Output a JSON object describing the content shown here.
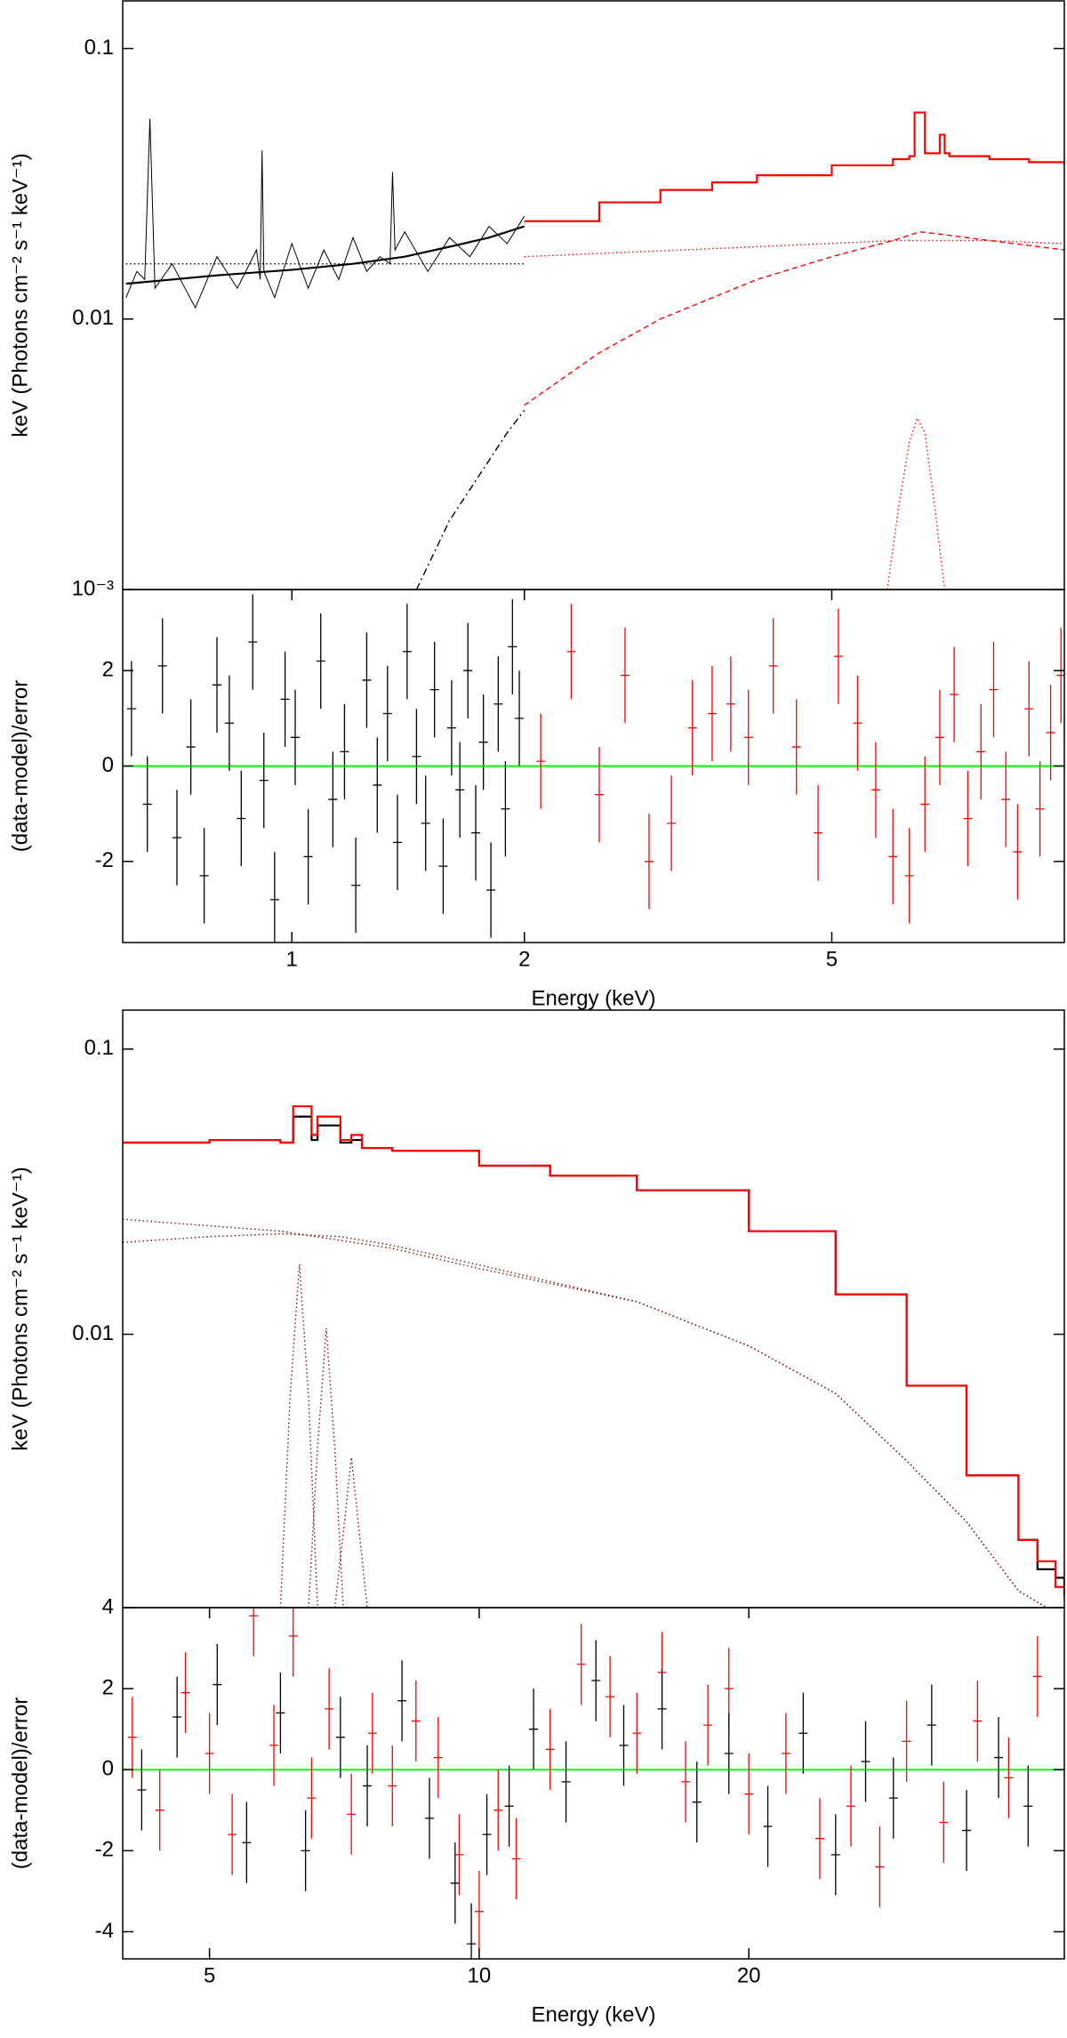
{
  "chart_data": [
    {
      "type": "line",
      "xscale": "log",
      "yscale": "log",
      "xlim": [
        0.604,
        10
      ],
      "ylim": [
        0.001,
        0.15
      ],
      "ylabel": "keV (Photons cm⁻² s⁻¹ keV⁻¹)",
      "yticks": [
        0.1,
        0.01,
        {
          "value": 0.001,
          "label": "10⁻³"
        }
      ],
      "series": [
        {
          "color": "#000000",
          "style": "solid",
          "x": [
            0.61,
            0.63,
            0.645,
            0.655,
            0.665,
            0.7,
            0.75,
            0.8,
            0.85,
            0.9,
            0.91,
            0.915,
            0.92,
            0.95,
            1.0,
            1.05,
            1.1,
            1.15,
            1.2,
            1.25,
            1.3,
            1.34,
            1.35,
            1.36,
            1.4,
            1.5,
            1.6,
            1.7,
            1.8,
            1.9,
            2.0
          ],
          "values": [
            0.012,
            0.015,
            0.014,
            0.055,
            0.013,
            0.016,
            0.011,
            0.017,
            0.013,
            0.018,
            0.014,
            0.042,
            0.015,
            0.012,
            0.019,
            0.013,
            0.018,
            0.014,
            0.02,
            0.015,
            0.017,
            0.016,
            0.035,
            0.018,
            0.021,
            0.015,
            0.02,
            0.017,
            0.022,
            0.019,
            0.024
          ]
        },
        {
          "color": "#000000",
          "style": "thick",
          "x": [
            0.61,
            0.8,
            1.0,
            1.2,
            1.4,
            1.6,
            1.8,
            2.0
          ],
          "values": [
            0.0135,
            0.0145,
            0.0152,
            0.016,
            0.017,
            0.0185,
            0.02,
            0.022
          ]
        },
        {
          "color": "#000000",
          "style": "dotted",
          "x": [
            0.61,
            2.0
          ],
          "values": [
            0.016,
            0.016
          ]
        },
        {
          "color": "#000000",
          "style": "dashdot",
          "x": [
            1.45,
            1.6,
            1.8,
            1.9,
            2.0
          ],
          "values": [
            0.001,
            0.0018,
            0.003,
            0.0038,
            0.0046
          ]
        },
        {
          "color": "#ff0000",
          "style": "steps",
          "x": [
            2,
            2.5,
            3,
            3.5,
            4,
            5,
            6,
            6.3,
            6.4,
            6.5,
            6.6,
            6.7,
            6.9,
            7.0,
            7.1,
            8,
            9,
            10
          ],
          "values": [
            0.023,
            0.027,
            0.03,
            0.032,
            0.034,
            0.037,
            0.039,
            0.04,
            0.058,
            0.058,
            0.041,
            0.041,
            0.048,
            0.041,
            0.04,
            0.039,
            0.038,
            0.037
          ]
        },
        {
          "color": "#ff0000",
          "style": "dotted",
          "x": [
            2,
            4,
            6,
            8,
            10
          ],
          "values": [
            0.017,
            0.0185,
            0.0195,
            0.0195,
            0.019
          ]
        },
        {
          "color": "#ff0000",
          "style": "dashed",
          "x": [
            2,
            2.5,
            3,
            4,
            5,
            6,
            6.5,
            7,
            8,
            10
          ],
          "values": [
            0.0048,
            0.0075,
            0.01,
            0.014,
            0.017,
            0.0195,
            0.021,
            0.0205,
            0.0195,
            0.018
          ]
        },
        {
          "color": "#ff0000",
          "style": "dotted",
          "x": [
            5.9,
            6.1,
            6.3,
            6.45,
            6.6,
            6.8,
            7.0
          ],
          "values": [
            0.001,
            0.002,
            0.0035,
            0.0043,
            0.0038,
            0.002,
            0.001
          ]
        }
      ]
    },
    {
      "type": "errorbar",
      "xscale": "log",
      "xlim": [
        0.604,
        10
      ],
      "ylim": [
        -3.7,
        3.7
      ],
      "ylabel": "(data-model)/error",
      "xlabel": "Energy (keV)",
      "yticks": [
        2,
        0,
        -2
      ],
      "xticks": [
        1,
        2,
        5
      ],
      "reference_line": {
        "value": 0,
        "color": "#00ff00"
      },
      "series": [
        {
          "color": "#000000",
          "x": [
            0.62,
            0.65,
            0.68,
            0.71,
            0.74,
            0.77,
            0.8,
            0.83,
            0.86,
            0.89,
            0.92,
            0.95,
            0.98,
            1.01,
            1.05,
            1.09,
            1.13,
            1.17,
            1.21,
            1.25,
            1.29,
            1.33,
            1.37,
            1.41,
            1.45,
            1.49,
            1.53,
            1.57,
            1.61,
            1.65,
            1.69,
            1.73,
            1.77,
            1.81,
            1.85,
            1.89,
            1.93,
            1.97
          ],
          "values": [
            1.2,
            -0.8,
            2.1,
            -1.5,
            0.4,
            -2.3,
            1.7,
            0.9,
            -1.1,
            2.6,
            -0.3,
            -2.8,
            1.4,
            0.6,
            -1.9,
            2.2,
            -0.7,
            0.3,
            -2.5,
            1.8,
            -0.4,
            1.1,
            -1.6,
            2.4,
            0.2,
            -1.2,
            1.6,
            -2.1,
            0.8,
            -0.5,
            2.0,
            -1.4,
            0.5,
            -2.6,
            1.3,
            -0.9,
            2.5,
            1.0
          ],
          "errors": [
            1,
            1,
            1,
            1,
            1,
            1,
            1,
            1,
            1,
            1,
            1,
            1,
            1,
            1,
            1,
            1,
            1,
            1,
            1,
            1,
            1,
            1,
            1,
            1,
            1,
            1,
            1,
            1,
            1,
            1,
            1,
            1,
            1,
            1,
            1,
            1,
            1,
            1
          ]
        },
        {
          "color": "#ff0000",
          "x": [
            2.1,
            2.3,
            2.5,
            2.7,
            2.9,
            3.1,
            3.3,
            3.5,
            3.7,
            3.9,
            4.2,
            4.5,
            4.8,
            5.1,
            5.4,
            5.7,
            6.0,
            6.3,
            6.6,
            6.9,
            7.2,
            7.5,
            7.8,
            8.1,
            8.4,
            8.7,
            9.0,
            9.3,
            9.6,
            9.9
          ],
          "values": [
            0.1,
            2.4,
            -0.6,
            1.9,
            -2.0,
            -1.2,
            0.8,
            1.1,
            1.3,
            0.6,
            2.1,
            0.4,
            -1.4,
            2.3,
            0.9,
            -0.5,
            -1.9,
            -2.3,
            -0.8,
            0.6,
            1.5,
            -1.1,
            0.3,
            1.6,
            -0.7,
            -1.8,
            1.2,
            -0.9,
            0.7,
            1.9
          ],
          "errors": [
            1,
            1,
            1,
            1,
            1,
            1,
            1,
            1,
            1,
            1,
            1,
            1,
            1,
            1,
            1,
            1,
            1,
            1,
            1,
            1,
            1,
            1,
            1,
            1,
            1,
            1,
            1,
            1,
            1,
            1
          ]
        }
      ]
    },
    {
      "type": "line",
      "xscale": "log",
      "yscale": "log",
      "xlim": [
        4,
        45
      ],
      "ylim": [
        0.0011,
        0.137
      ],
      "ylabel": "keV (Photons cm⁻² s⁻¹ keV⁻¹)",
      "yticks": [
        0.1,
        0.01
      ],
      "series": [
        {
          "color": "#000000",
          "style": "steps",
          "x": [
            4,
            5,
            6,
            6.2,
            6.3,
            6.5,
            6.6,
            6.8,
            7.0,
            7.2,
            7.4,
            8,
            10,
            12,
            15,
            20,
            25,
            30,
            35,
            40,
            42,
            44,
            45
          ],
          "values": [
            0.047,
            0.048,
            0.047,
            0.058,
            0.058,
            0.048,
            0.054,
            0.054,
            0.047,
            0.048,
            0.045,
            0.044,
            0.039,
            0.036,
            0.032,
            0.023,
            0.0138,
            0.0066,
            0.0032,
            0.0019,
            0.0015,
            0.0014,
            0.0013
          ]
        },
        {
          "color": "#ff0000",
          "style": "steps",
          "x": [
            4,
            5,
            6,
            6.2,
            6.3,
            6.5,
            6.6,
            6.8,
            7.0,
            7.2,
            7.4,
            8,
            10,
            12,
            15,
            20,
            25,
            30,
            35,
            40,
            42,
            44,
            45
          ],
          "values": [
            0.047,
            0.048,
            0.047,
            0.063,
            0.063,
            0.05,
            0.058,
            0.058,
            0.048,
            0.05,
            0.045,
            0.044,
            0.039,
            0.036,
            0.032,
            0.023,
            0.0138,
            0.0066,
            0.0032,
            0.0019,
            0.0016,
            0.0013,
            0.0012
          ]
        },
        {
          "color": "#7a1010",
          "style": "dotted",
          "x": [
            4,
            6,
            8,
            10,
            15,
            20,
            25,
            30,
            35,
            40,
            43
          ],
          "values": [
            0.0253,
            0.023,
            0.02,
            0.017,
            0.013,
            0.0091,
            0.0062,
            0.0036,
            0.0022,
            0.00126,
            0.0011
          ]
        },
        {
          "color": "#7a1010",
          "style": "dotted",
          "x": [
            4,
            5,
            6,
            7,
            8,
            10,
            15,
            20,
            25,
            30,
            35,
            40,
            43
          ],
          "values": [
            0.021,
            0.022,
            0.0225,
            0.022,
            0.0205,
            0.0175,
            0.013,
            0.0091,
            0.0062,
            0.0036,
            0.0022,
            0.00126,
            0.0011
          ]
        },
        {
          "color": "#7a1010",
          "style": "dotted",
          "x": [
            6.0,
            6.15,
            6.3,
            6.45,
            6.6
          ],
          "values": [
            0.0011,
            0.006,
            0.0176,
            0.006,
            0.0011
          ]
        },
        {
          "color": "#7a1010",
          "style": "dotted",
          "x": [
            6.45,
            6.6,
            6.75,
            6.9,
            7.05
          ],
          "values": [
            0.0011,
            0.004,
            0.0105,
            0.004,
            0.0011
          ]
        },
        {
          "color": "#7a1010",
          "style": "dotted",
          "x": [
            6.9,
            7.05,
            7.2,
            7.35,
            7.5
          ],
          "values": [
            0.0011,
            0.002,
            0.0037,
            0.002,
            0.0011
          ]
        }
      ]
    },
    {
      "type": "errorbar",
      "xscale": "log",
      "xlim": [
        4,
        45
      ],
      "ylim": [
        -4.67,
        4
      ],
      "ylabel": "(data-model)/error",
      "xlabel": "Energy (keV)",
      "yticks": [
        4,
        2,
        0,
        -2,
        -4
      ],
      "xticks": [
        5,
        10,
        20
      ],
      "reference_line": {
        "value": 0,
        "color": "#00ff00"
      },
      "series": [
        {
          "color": "#ff0000",
          "x": [
            4.1,
            4.4,
            4.7,
            5.0,
            5.3,
            5.6,
            5.9,
            6.2,
            6.5,
            6.8,
            7.2,
            7.6,
            8.0,
            8.5,
            9.0,
            9.5,
            10.0,
            10.5,
            11.0,
            12,
            13,
            14,
            15,
            16,
            17,
            18,
            19,
            20,
            22,
            24,
            26,
            28,
            30,
            33,
            36,
            39,
            42
          ],
          "values": [
            0.8,
            -1.0,
            1.9,
            0.4,
            -1.6,
            3.8,
            0.6,
            3.3,
            -0.7,
            1.5,
            -1.1,
            0.9,
            -0.4,
            1.2,
            0.3,
            -2.1,
            -3.5,
            -1.0,
            -2.2,
            0.5,
            2.6,
            1.8,
            0.9,
            2.4,
            -0.3,
            1.1,
            2.0,
            -0.6,
            0.4,
            -1.7,
            -0.9,
            -2.4,
            0.7,
            -1.3,
            1.2,
            -0.2,
            2.3
          ],
          "errors": [
            1,
            1,
            1,
            1,
            1,
            1,
            1,
            1,
            1,
            1,
            1,
            1,
            1,
            1,
            1,
            1,
            1,
            1,
            1,
            1,
            1,
            1,
            1,
            1,
            1,
            1,
            1,
            1,
            1,
            1,
            1,
            1,
            1,
            1,
            1,
            1,
            1
          ]
        },
        {
          "color": "#000000",
          "x": [
            4.2,
            4.6,
            5.1,
            5.5,
            6.0,
            6.4,
            7.0,
            7.5,
            8.2,
            8.8,
            9.4,
            9.8,
            10.2,
            10.8,
            11.5,
            12.5,
            13.5,
            14.5,
            16,
            17.5,
            19,
            21,
            23,
            25,
            27,
            29,
            32,
            35,
            38,
            41
          ],
          "values": [
            -0.5,
            1.3,
            2.1,
            -1.8,
            1.4,
            -2.0,
            0.8,
            -0.4,
            1.7,
            -1.2,
            -2.8,
            -4.3,
            -1.6,
            -0.9,
            1.0,
            -0.3,
            2.2,
            0.6,
            1.5,
            -0.8,
            0.4,
            -1.4,
            0.9,
            -2.1,
            0.2,
            -0.7,
            1.1,
            -1.5,
            0.3,
            -0.9
          ],
          "errors": [
            1,
            1,
            1,
            1,
            1,
            1,
            1,
            1,
            1,
            1,
            1,
            1,
            1,
            1,
            1,
            1,
            1,
            1,
            1,
            1,
            1,
            1,
            1,
            1,
            1,
            1,
            1,
            1,
            1,
            1
          ]
        }
      ]
    }
  ]
}
